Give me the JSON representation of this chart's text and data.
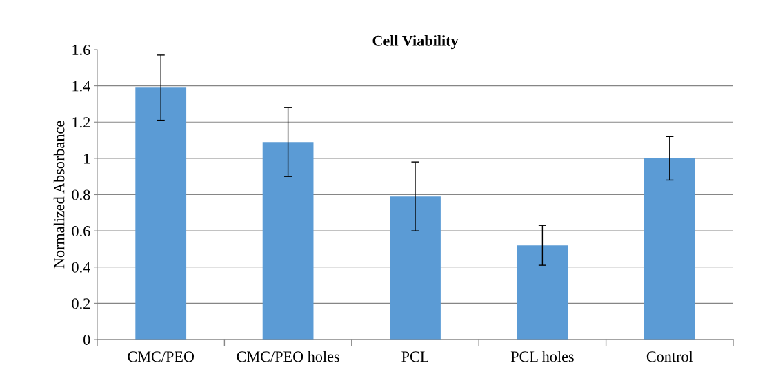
{
  "chart_data": {
    "type": "bar",
    "title": "Cell Viability",
    "ylabel": "Normalized Absorbance",
    "categories": [
      "CMC/PEO",
      "CMC/PEO holes",
      "PCL",
      "PCL holes",
      "Control"
    ],
    "values": [
      1.39,
      1.09,
      0.79,
      0.52,
      1.0
    ],
    "errors": [
      0.18,
      0.19,
      0.19,
      0.11,
      0.12
    ],
    "color": "#5b9bd5",
    "ylim": [
      0,
      1.6
    ],
    "yticks": [
      0,
      0.2,
      0.4,
      0.6,
      0.8,
      1,
      1.2,
      1.4,
      1.6
    ],
    "grid": "y",
    "legend": false
  }
}
